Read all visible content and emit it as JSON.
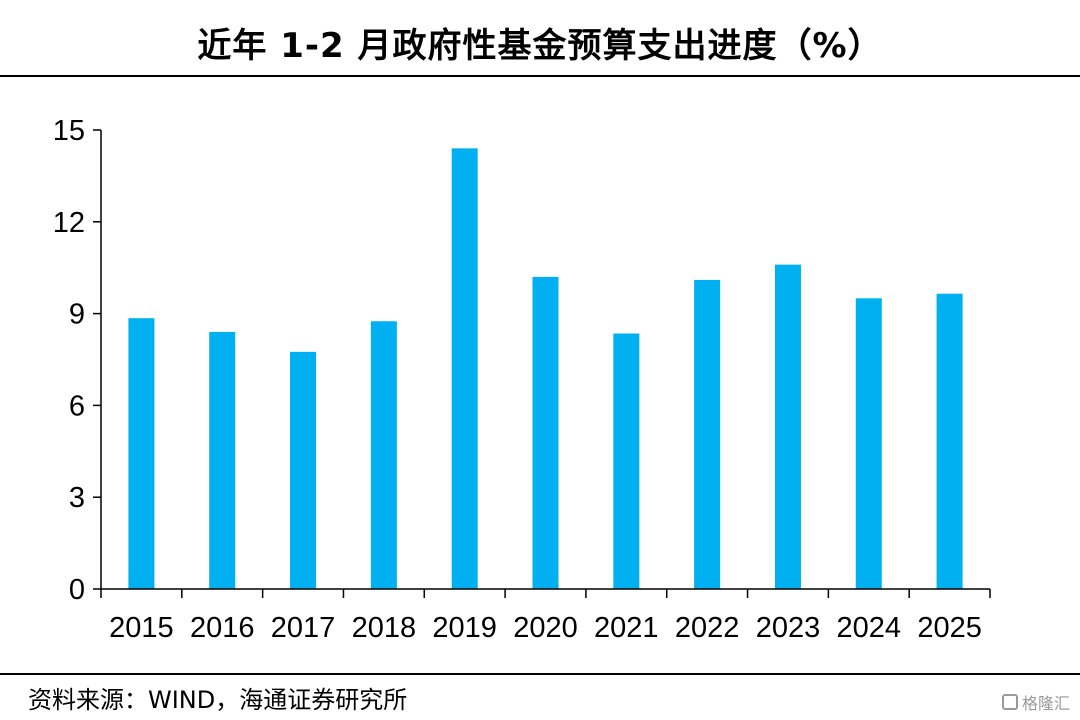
{
  "header": {
    "title": "近年 1-2 月政府性基金预算支出进度（%）"
  },
  "footer": {
    "source": "资料来源：WIND，海通证券研究所"
  },
  "watermark": {
    "text": "格隆汇"
  },
  "chart_data": {
    "type": "bar",
    "title": "近年 1-2 月政府性基金预算支出进度（%）",
    "xlabel": "",
    "ylabel": "",
    "categories": [
      "2015",
      "2016",
      "2017",
      "2018",
      "2019",
      "2020",
      "2021",
      "2022",
      "2023",
      "2024",
      "2025"
    ],
    "values": [
      8.85,
      8.4,
      7.75,
      8.75,
      14.4,
      10.2,
      8.35,
      10.1,
      10.6,
      9.5,
      9.65
    ],
    "ylim": [
      0,
      15
    ],
    "yticks": [
      0,
      3,
      6,
      9,
      12,
      15
    ],
    "bar_color": "#00B0F0",
    "grid": false,
    "legend": "none"
  }
}
